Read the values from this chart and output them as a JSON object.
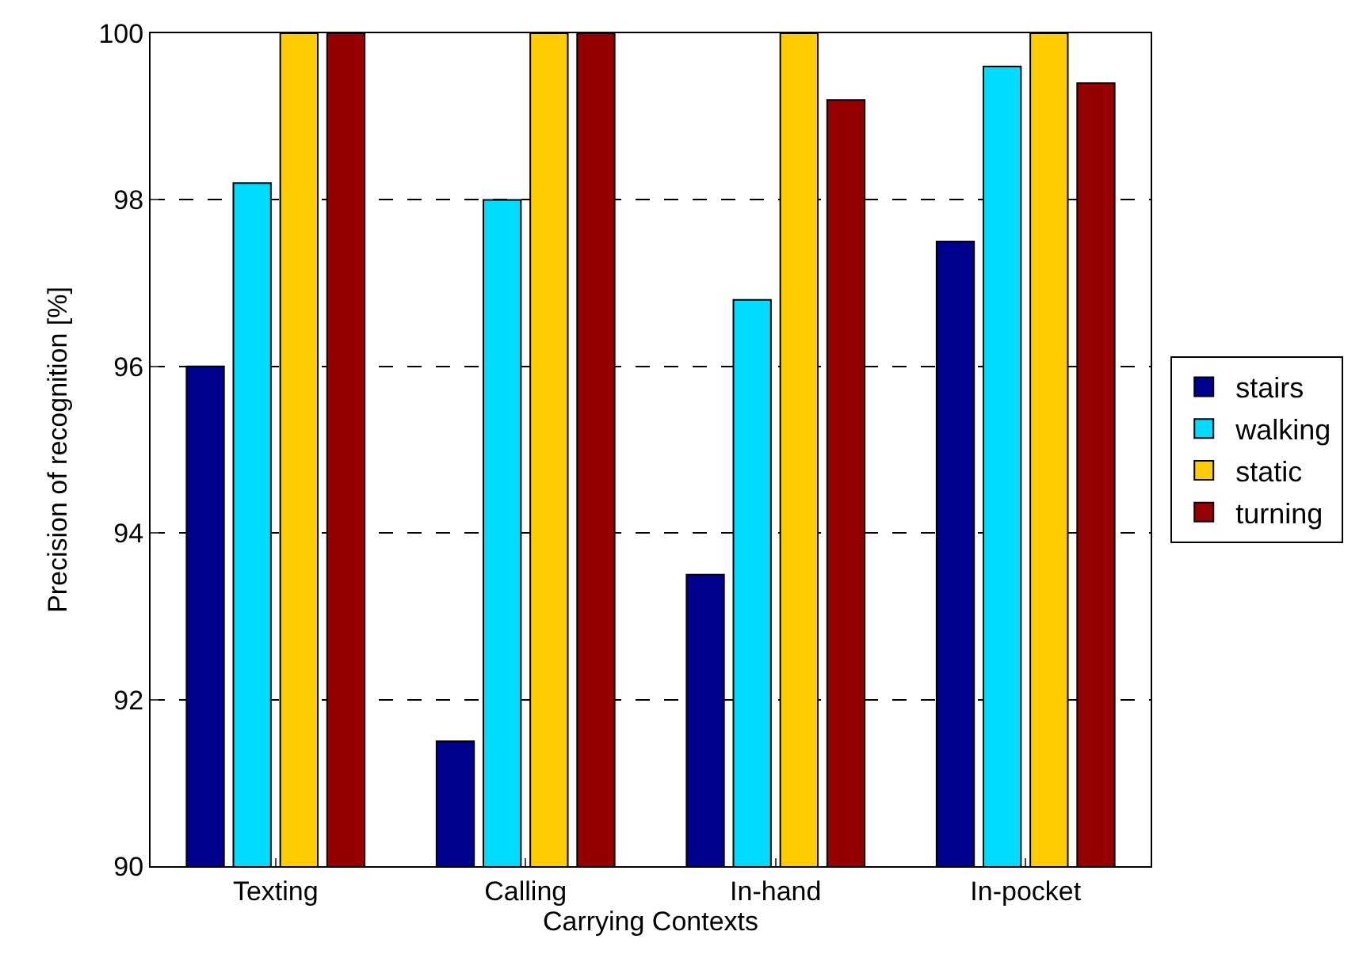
{
  "chart_data": {
    "type": "bar",
    "xlabel": "Carrying Contexts",
    "ylabel": "Precision of recognition [%]",
    "categories": [
      "Texting",
      "Calling",
      "In-hand",
      "In-pocket"
    ],
    "series": [
      {
        "name": "stairs",
        "color": "#00008f",
        "values": [
          96.0,
          91.5,
          93.5,
          97.5
        ]
      },
      {
        "name": "walking",
        "color": "#00dcff",
        "values": [
          98.2,
          98.0,
          96.8,
          99.6
        ]
      },
      {
        "name": "static",
        "color": "#ffcc00",
        "values": [
          100,
          100,
          100,
          100
        ]
      },
      {
        "name": "turning",
        "color": "#960000",
        "values": [
          100,
          100,
          99.2,
          99.4
        ]
      }
    ],
    "ylim": [
      90,
      100
    ],
    "yticks": [
      90,
      92,
      94,
      96,
      98,
      100
    ],
    "grid": "y",
    "legend": "right"
  }
}
